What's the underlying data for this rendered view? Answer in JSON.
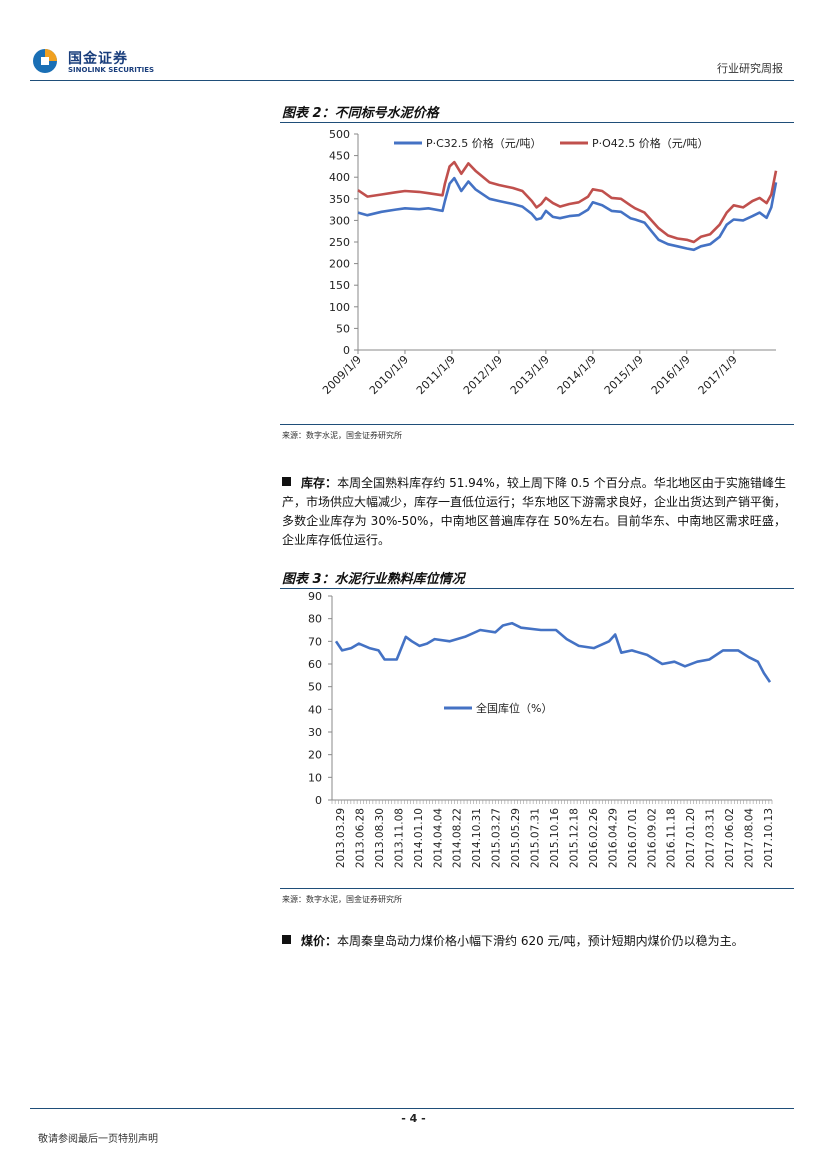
{
  "header": {
    "logo_cn": "国金证券",
    "logo_en": "SINOLINK SECURITIES",
    "report_type": "行业研究周报"
  },
  "figure2": {
    "title": "图表 2：不同标号水泥价格",
    "source": "来源：数字水泥，国金证券研究所"
  },
  "figure3": {
    "title": "图表 3：水泥行业熟料库位情况",
    "source": "来源：数字水泥，国金证券研究所"
  },
  "para_inventory": {
    "label": "库存：",
    "text": "本周全国熟料库存约 51.94%，较上周下降 0.5 个百分点。华北地区由于实施错峰生产，市场供应大幅减少，库存一直低位运行；华东地区下游需求良好，企业出货达到产销平衡，多数企业库存为 30%-50%，中南地区普遍库存在 50%左右。目前华东、中南地区需求旺盛，企业库存低位运行。"
  },
  "para_coal": {
    "label": "煤价：",
    "text": "本周秦皇岛动力煤价格小幅下滑约 620 元/吨，预计短期内煤价仍以稳为主。"
  },
  "footer": {
    "page_number": "- 4 -",
    "disclaimer": "敬请参阅最后一页特别声明"
  },
  "colors": {
    "blue": "#4472c4",
    "red": "#c0504d",
    "rule": "#1f4e79"
  },
  "chart_data": [
    {
      "type": "line",
      "title": "不同标号水泥价格",
      "ylim": [
        0,
        500
      ],
      "yticks": [
        0,
        50,
        100,
        150,
        200,
        250,
        300,
        350,
        400,
        450,
        500
      ],
      "x_tick_labels": [
        "2009/1/9",
        "2010/1/9",
        "2011/1/9",
        "2012/1/9",
        "2013/1/9",
        "2014/1/9",
        "2015/1/9",
        "2016/1/9",
        "2017/1/9"
      ],
      "x_range_years": [
        2009.0,
        2017.9
      ],
      "legend_position": "top",
      "series": [
        {
          "name": "P·C32.5 价格（元/吨）",
          "color": "#4472c4",
          "points": [
            [
              2009.0,
              318
            ],
            [
              2009.2,
              312
            ],
            [
              2009.5,
              320
            ],
            [
              2009.8,
              325
            ],
            [
              2010.0,
              328
            ],
            [
              2010.3,
              326
            ],
            [
              2010.5,
              328
            ],
            [
              2010.8,
              322
            ],
            [
              2010.85,
              345
            ],
            [
              2010.95,
              385
            ],
            [
              2011.05,
              398
            ],
            [
              2011.2,
              368
            ],
            [
              2011.35,
              390
            ],
            [
              2011.5,
              372
            ],
            [
              2011.8,
              350
            ],
            [
              2012.0,
              345
            ],
            [
              2012.3,
              338
            ],
            [
              2012.5,
              332
            ],
            [
              2012.7,
              315
            ],
            [
              2012.8,
              302
            ],
            [
              2012.9,
              305
            ],
            [
              2013.0,
              322
            ],
            [
              2013.15,
              308
            ],
            [
              2013.3,
              305
            ],
            [
              2013.5,
              310
            ],
            [
              2013.7,
              312
            ],
            [
              2013.9,
              325
            ],
            [
              2014.0,
              342
            ],
            [
              2014.2,
              335
            ],
            [
              2014.4,
              322
            ],
            [
              2014.6,
              320
            ],
            [
              2014.8,
              305
            ],
            [
              2014.9,
              302
            ],
            [
              2015.1,
              295
            ],
            [
              2015.25,
              275
            ],
            [
              2015.4,
              255
            ],
            [
              2015.6,
              245
            ],
            [
              2015.8,
              240
            ],
            [
              2016.0,
              235
            ],
            [
              2016.15,
              232
            ],
            [
              2016.3,
              240
            ],
            [
              2016.5,
              245
            ],
            [
              2016.7,
              262
            ],
            [
              2016.85,
              290
            ],
            [
              2017.0,
              302
            ],
            [
              2017.2,
              300
            ],
            [
              2017.4,
              310
            ],
            [
              2017.55,
              318
            ],
            [
              2017.7,
              306
            ],
            [
              2017.8,
              330
            ],
            [
              2017.9,
              388
            ]
          ]
        },
        {
          "name": "P·O42.5 价格（元/吨）",
          "color": "#c0504d",
          "points": [
            [
              2009.0,
              370
            ],
            [
              2009.2,
              355
            ],
            [
              2009.5,
              360
            ],
            [
              2009.8,
              365
            ],
            [
              2010.0,
              368
            ],
            [
              2010.3,
              366
            ],
            [
              2010.5,
              363
            ],
            [
              2010.8,
              358
            ],
            [
              2010.85,
              385
            ],
            [
              2010.95,
              425
            ],
            [
              2011.05,
              435
            ],
            [
              2011.2,
              408
            ],
            [
              2011.35,
              432
            ],
            [
              2011.5,
              415
            ],
            [
              2011.8,
              388
            ],
            [
              2012.0,
              382
            ],
            [
              2012.3,
              375
            ],
            [
              2012.5,
              368
            ],
            [
              2012.7,
              345
            ],
            [
              2012.8,
              330
            ],
            [
              2012.9,
              338
            ],
            [
              2013.0,
              352
            ],
            [
              2013.15,
              340
            ],
            [
              2013.3,
              332
            ],
            [
              2013.5,
              338
            ],
            [
              2013.7,
              342
            ],
            [
              2013.9,
              355
            ],
            [
              2014.0,
              372
            ],
            [
              2014.2,
              368
            ],
            [
              2014.4,
              352
            ],
            [
              2014.6,
              350
            ],
            [
              2014.8,
              335
            ],
            [
              2014.9,
              328
            ],
            [
              2015.1,
              318
            ],
            [
              2015.25,
              300
            ],
            [
              2015.4,
              282
            ],
            [
              2015.6,
              265
            ],
            [
              2015.8,
              258
            ],
            [
              2016.0,
              255
            ],
            [
              2016.15,
              250
            ],
            [
              2016.3,
              262
            ],
            [
              2016.5,
              268
            ],
            [
              2016.7,
              290
            ],
            [
              2016.85,
              318
            ],
            [
              2017.0,
              335
            ],
            [
              2017.2,
              330
            ],
            [
              2017.4,
              345
            ],
            [
              2017.55,
              352
            ],
            [
              2017.7,
              340
            ],
            [
              2017.8,
              360
            ],
            [
              2017.9,
              415
            ]
          ]
        }
      ]
    },
    {
      "type": "line",
      "title": "水泥行业熟料库位情况",
      "ylim": [
        0,
        90
      ],
      "yticks": [
        0,
        10,
        20,
        30,
        40,
        50,
        60,
        70,
        80,
        90
      ],
      "x_tick_labels": [
        "2013.03.29",
        "2013.06.28",
        "2013.08.30",
        "2013.11.08",
        "2014.01.10",
        "2014.04.04",
        "2014.08.22",
        "2014.10.31",
        "2015.03.27",
        "2015.05.29",
        "2015.07.31",
        "2015.10.16",
        "2015.12.18",
        "2016.02.26",
        "2016.04.29",
        "2016.07.01",
        "2016.09.02",
        "2016.11.18",
        "2017.01.20",
        "2017.03.31",
        "2017.06.02",
        "2017.08.04",
        "2017.10.13"
      ],
      "legend_position": "center",
      "series": [
        {
          "name": "全国库位（%）",
          "color": "#4472c4",
          "points": [
            [
              0,
              70
            ],
            [
              0.4,
              66
            ],
            [
              1,
              67
            ],
            [
              1.5,
              69
            ],
            [
              2.2,
              67
            ],
            [
              2.8,
              66
            ],
            [
              3.2,
              62
            ],
            [
              4,
              62
            ],
            [
              4.3,
              67
            ],
            [
              4.6,
              72
            ],
            [
              5,
              70
            ],
            [
              5.5,
              68
            ],
            [
              6,
              69
            ],
            [
              6.5,
              71
            ],
            [
              7.5,
              70
            ],
            [
              8.5,
              72
            ],
            [
              9.5,
              75
            ],
            [
              10.5,
              74
            ],
            [
              11,
              77
            ],
            [
              11.6,
              78
            ],
            [
              12.2,
              76
            ],
            [
              13.5,
              75
            ],
            [
              14.5,
              75
            ],
            [
              15.2,
              71
            ],
            [
              16,
              68
            ],
            [
              17,
              67
            ],
            [
              18,
              70
            ],
            [
              18.4,
              73
            ],
            [
              18.8,
              65
            ],
            [
              19.5,
              66
            ],
            [
              20.5,
              64
            ],
            [
              21.5,
              60
            ],
            [
              22.3,
              61
            ],
            [
              23,
              59
            ],
            [
              23.8,
              61
            ],
            [
              24.6,
              62
            ],
            [
              25.5,
              66
            ],
            [
              26.5,
              66
            ],
            [
              27.2,
              63
            ],
            [
              27.8,
              61
            ],
            [
              28.2,
              56
            ],
            [
              28.6,
              52
            ]
          ]
        }
      ]
    }
  ]
}
